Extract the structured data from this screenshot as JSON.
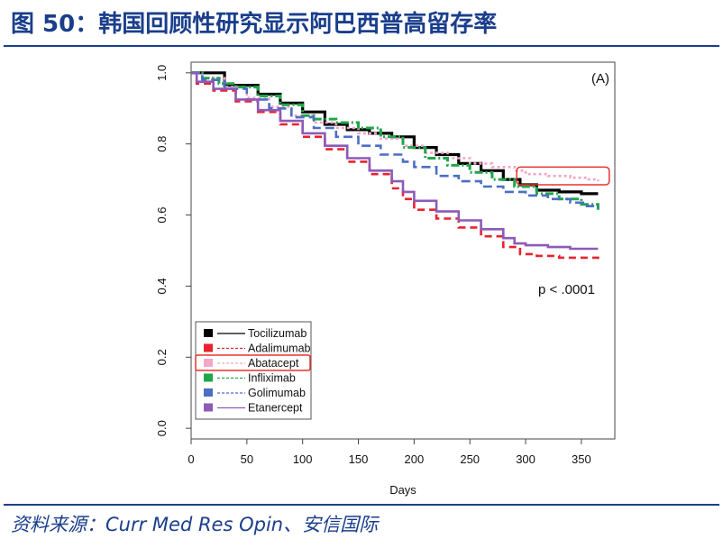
{
  "figure": {
    "title": "图 50：韩国回顾性研究显示阿巴西普高留存率",
    "source": "资料来源：Curr Med Res Opin、安信国际"
  },
  "chart_data": {
    "type": "line",
    "panel_label": "(A)",
    "annotation": "p < .0001",
    "xlabel": "Days",
    "ylabel": "",
    "xlim": [
      0,
      380
    ],
    "ylim": [
      -0.03,
      1.03
    ],
    "x_ticks": [
      0,
      50,
      100,
      150,
      200,
      250,
      300,
      350
    ],
    "y_ticks": [
      0.0,
      0.2,
      0.4,
      0.6,
      0.8,
      1.0
    ],
    "highlight": {
      "series": "Abatacept",
      "x_range": [
        292,
        375
      ],
      "y_range": [
        0.685,
        0.735
      ]
    },
    "legend_position": "bottom-left",
    "series": [
      {
        "name": "Tocilizumab",
        "color": "#000000",
        "dash": "solid",
        "width": 3.2,
        "points": [
          [
            0,
            1.0
          ],
          [
            28,
            1.0
          ],
          [
            30,
            0.965
          ],
          [
            45,
            0.965
          ],
          [
            60,
            0.94
          ],
          [
            80,
            0.915
          ],
          [
            100,
            0.89
          ],
          [
            120,
            0.855
          ],
          [
            140,
            0.84
          ],
          [
            160,
            0.83
          ],
          [
            180,
            0.82
          ],
          [
            200,
            0.79
          ],
          [
            220,
            0.77
          ],
          [
            240,
            0.745
          ],
          [
            260,
            0.725
          ],
          [
            280,
            0.7
          ],
          [
            295,
            0.685
          ],
          [
            310,
            0.67
          ],
          [
            330,
            0.665
          ],
          [
            350,
            0.66
          ],
          [
            365,
            0.66
          ]
        ]
      },
      {
        "name": "Adalimumab",
        "color": "#e8222e",
        "dash": "8,5",
        "width": 2.6,
        "points": [
          [
            0,
            1.0
          ],
          [
            5,
            0.97
          ],
          [
            20,
            0.95
          ],
          [
            40,
            0.92
          ],
          [
            60,
            0.89
          ],
          [
            80,
            0.855
          ],
          [
            100,
            0.82
          ],
          [
            120,
            0.785
          ],
          [
            140,
            0.75
          ],
          [
            160,
            0.715
          ],
          [
            180,
            0.675
          ],
          [
            190,
            0.645
          ],
          [
            200,
            0.615
          ],
          [
            220,
            0.59
          ],
          [
            240,
            0.565
          ],
          [
            260,
            0.54
          ],
          [
            280,
            0.51
          ],
          [
            295,
            0.49
          ],
          [
            310,
            0.485
          ],
          [
            330,
            0.48
          ],
          [
            350,
            0.48
          ],
          [
            365,
            0.475
          ]
        ]
      },
      {
        "name": "Abatacept",
        "color": "#f4a6c8",
        "dash": "3,3",
        "width": 2.6,
        "points": [
          [
            0,
            1.0
          ],
          [
            10,
            0.985
          ],
          [
            30,
            0.96
          ],
          [
            50,
            0.93
          ],
          [
            70,
            0.905
          ],
          [
            90,
            0.88
          ],
          [
            110,
            0.86
          ],
          [
            130,
            0.845
          ],
          [
            150,
            0.83
          ],
          [
            170,
            0.815
          ],
          [
            190,
            0.795
          ],
          [
            210,
            0.775
          ],
          [
            230,
            0.76
          ],
          [
            250,
            0.745
          ],
          [
            270,
            0.735
          ],
          [
            290,
            0.725
          ],
          [
            300,
            0.715
          ],
          [
            320,
            0.71
          ],
          [
            340,
            0.705
          ],
          [
            355,
            0.7
          ],
          [
            365,
            0.695
          ]
        ]
      },
      {
        "name": "Infliximab",
        "color": "#1fa64a",
        "dash": "9,3,2,3",
        "width": 3.0,
        "points": [
          [
            0,
            1.0
          ],
          [
            10,
            0.985
          ],
          [
            25,
            0.97
          ],
          [
            40,
            0.96
          ],
          [
            60,
            0.935
          ],
          [
            80,
            0.91
          ],
          [
            100,
            0.88
          ],
          [
            110,
            0.87
          ],
          [
            130,
            0.86
          ],
          [
            150,
            0.845
          ],
          [
            170,
            0.82
          ],
          [
            190,
            0.79
          ],
          [
            210,
            0.76
          ],
          [
            230,
            0.74
          ],
          [
            250,
            0.72
          ],
          [
            270,
            0.7
          ],
          [
            290,
            0.68
          ],
          [
            310,
            0.66
          ],
          [
            330,
            0.645
          ],
          [
            350,
            0.63
          ],
          [
            365,
            0.615
          ]
        ]
      },
      {
        "name": "Golimumab",
        "color": "#4a6fc4",
        "dash": "10,5",
        "width": 2.6,
        "points": [
          [
            0,
            1.0
          ],
          [
            10,
            0.98
          ],
          [
            30,
            0.955
          ],
          [
            50,
            0.925
          ],
          [
            70,
            0.9
          ],
          [
            90,
            0.875
          ],
          [
            110,
            0.845
          ],
          [
            130,
            0.82
          ],
          [
            150,
            0.795
          ],
          [
            170,
            0.77
          ],
          [
            190,
            0.75
          ],
          [
            200,
            0.735
          ],
          [
            220,
            0.71
          ],
          [
            240,
            0.695
          ],
          [
            260,
            0.68
          ],
          [
            280,
            0.665
          ],
          [
            300,
            0.655
          ],
          [
            320,
            0.645
          ],
          [
            340,
            0.635
          ],
          [
            355,
            0.625
          ],
          [
            365,
            0.62
          ]
        ]
      },
      {
        "name": "Etanercept",
        "color": "#8e5ab8",
        "dash": "solid",
        "width": 2.6,
        "points": [
          [
            0,
            1.0
          ],
          [
            5,
            0.975
          ],
          [
            20,
            0.955
          ],
          [
            40,
            0.925
          ],
          [
            60,
            0.895
          ],
          [
            80,
            0.865
          ],
          [
            100,
            0.83
          ],
          [
            120,
            0.795
          ],
          [
            140,
            0.76
          ],
          [
            160,
            0.725
          ],
          [
            180,
            0.695
          ],
          [
            190,
            0.665
          ],
          [
            200,
            0.64
          ],
          [
            220,
            0.61
          ],
          [
            240,
            0.585
          ],
          [
            260,
            0.56
          ],
          [
            280,
            0.535
          ],
          [
            290,
            0.52
          ],
          [
            300,
            0.515
          ],
          [
            320,
            0.51
          ],
          [
            340,
            0.505
          ],
          [
            365,
            0.505
          ]
        ]
      }
    ]
  }
}
